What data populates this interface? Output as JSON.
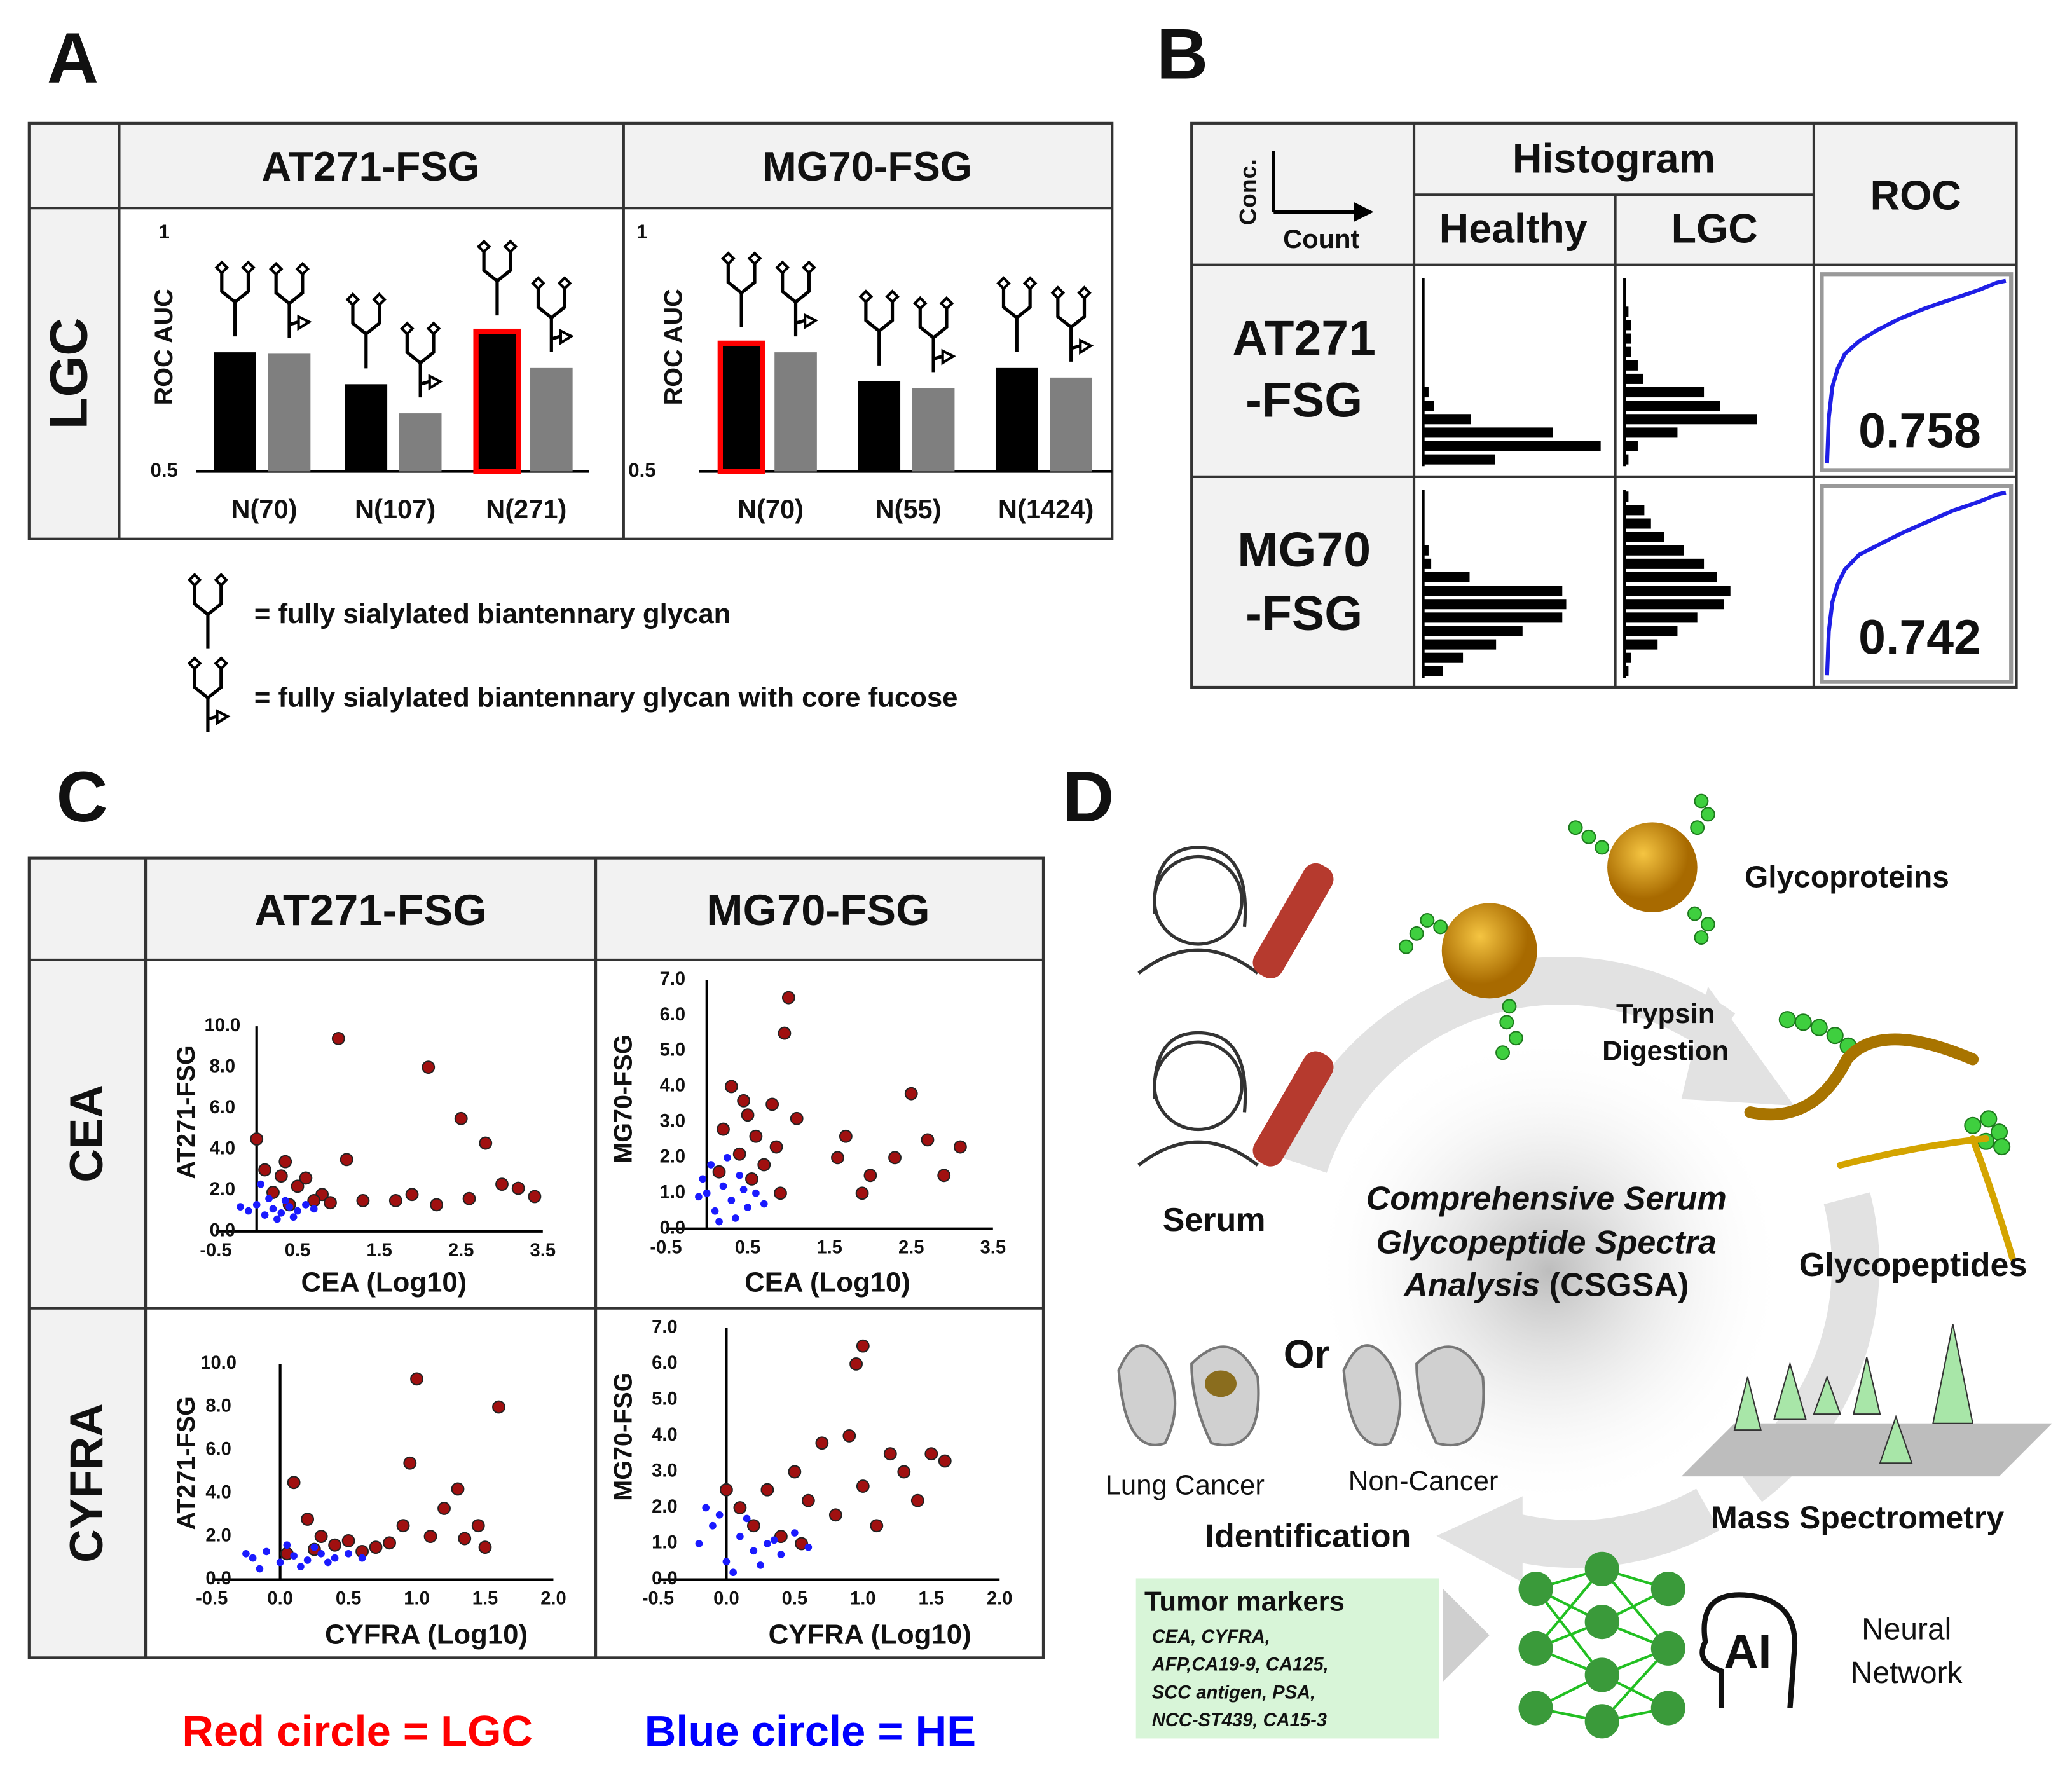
{
  "panel_labels": [
    "A",
    "B",
    "C",
    "D"
  ],
  "panel_a": {
    "columns": [
      "AT271-FSG",
      "MG70-FSG"
    ],
    "row_label": "LGC",
    "charts": [
      {
        "type": "bar",
        "ylabel": "ROC AUC",
        "ylim": [
          0.5,
          1
        ],
        "yticks": [
          0.5,
          1
        ],
        "categories": [
          "N(70)",
          "N(107)",
          "N(271)"
        ],
        "series": [
          {
            "color": "#000000",
            "values": [
              0.75,
              0.683,
              0.794
            ]
          },
          {
            "color": "#7f7f7f",
            "values": [
              0.747,
              0.622,
              0.717
            ]
          }
        ],
        "highlight": {
          "series": 0,
          "index": 2,
          "color": "#ff0000"
        }
      },
      {
        "type": "bar",
        "ylabel": "ROC AUC",
        "ylim": [
          0.5,
          1
        ],
        "yticks": [
          0.5,
          1
        ],
        "categories": [
          "N(70)",
          "N(55)",
          "N(1424)"
        ],
        "series": [
          {
            "color": "#000000",
            "values": [
              0.769,
              0.689,
              0.717
            ]
          },
          {
            "color": "#7f7f7f",
            "values": [
              0.75,
              0.675,
              0.697
            ]
          }
        ],
        "highlight": {
          "series": 0,
          "index": 0,
          "color": "#ff0000"
        }
      }
    ],
    "legend": [
      "= fully sialylated biantennary glycan",
      "= fully sialylated biantennary glycan with core fucose"
    ]
  },
  "panel_b": {
    "axis_y": "Conc.",
    "axis_x": "Count",
    "histogram_title": "Histogram",
    "groups": [
      "Healthy",
      "LGC"
    ],
    "roc_title": "ROC",
    "color": "#1f1fe6",
    "rows": [
      {
        "label_lines": [
          "AT271",
          "-FSG"
        ],
        "healthy_counts": [
          0,
          0,
          0,
          0,
          0,
          0,
          0,
          0,
          4,
          8,
          36,
          98,
          134,
          54
        ],
        "lgc_counts": [
          0,
          0,
          3,
          5,
          5,
          5,
          10,
          14,
          60,
          72,
          100,
          40,
          10,
          3
        ],
        "roc": {
          "fpr": [
            0,
            0.01,
            0.03,
            0.06,
            0.1,
            0.18,
            0.28,
            0.4,
            0.55,
            0.7,
            0.85,
            0.95,
            1
          ],
          "tpr": [
            0,
            0.25,
            0.42,
            0.52,
            0.6,
            0.67,
            0.73,
            0.79,
            0.85,
            0.9,
            0.95,
            0.99,
            1
          ]
        },
        "auc": 0.758
      },
      {
        "label_lines": [
          "MG70",
          "-FSG"
        ],
        "healthy_counts": [
          0,
          0,
          0,
          0,
          4,
          6,
          35,
          105,
          108,
          105,
          75,
          55,
          30,
          15
        ],
        "lgc_counts": [
          3,
          15,
          20,
          30,
          45,
          60,
          70,
          80,
          75,
          55,
          40,
          25,
          5,
          3
        ],
        "roc": {
          "fpr": [
            0,
            0.01,
            0.03,
            0.06,
            0.1,
            0.18,
            0.3,
            0.42,
            0.56,
            0.7,
            0.85,
            0.95,
            1
          ],
          "tpr": [
            0,
            0.24,
            0.4,
            0.5,
            0.58,
            0.66,
            0.72,
            0.78,
            0.84,
            0.9,
            0.95,
            0.99,
            1
          ]
        },
        "auc": 0.742
      }
    ]
  },
  "panel_c": {
    "columns": [
      "AT271-FSG",
      "MG70-FSG"
    ],
    "rows": [
      "CEA",
      "CYFRA"
    ],
    "legend": [
      {
        "text": "Red circle = LGC",
        "color": "#ff0000"
      },
      {
        "text": "Blue circle = HE",
        "color": "#0000ff"
      }
    ],
    "charts": [
      {
        "type": "scatter",
        "xlabel": "CEA (Log10)",
        "ylabel": "AT271-FSG",
        "xlim": [
          -0.5,
          3.5
        ],
        "ylim": [
          0,
          10
        ],
        "xticks": [
          -0.5,
          0.5,
          1.5,
          2.5,
          3.5
        ],
        "yticks": [
          {
            "value": 0,
            "label": "0.0"
          },
          {
            "value": 2,
            "label": "2.0"
          },
          {
            "value": 4,
            "label": "4.0"
          },
          {
            "value": 6,
            "label": "6.0"
          },
          {
            "value": 8,
            "label": "8.0"
          },
          {
            "value": 10,
            "label": "10.0"
          }
        ],
        "series": [
          {
            "color": "#a01010",
            "x": [
              1.0,
              2.1,
              2.5,
              2.8,
              0.0,
              0.1,
              0.3,
              0.5,
              0.8,
              1.1,
              1.7,
              1.9,
              2.2,
              2.6,
              3.0,
              3.2,
              3.4,
              0.4,
              0.7,
              0.2,
              0.9,
              0.6,
              0.35,
              1.3
            ],
            "y": [
              9.4,
              8.0,
              5.5,
              4.3,
              4.5,
              3.0,
              2.7,
              2.2,
              1.8,
              3.5,
              1.5,
              1.8,
              1.3,
              1.6,
              2.3,
              2.1,
              1.7,
              1.3,
              1.5,
              1.9,
              1.4,
              2.6,
              3.4,
              1.5
            ]
          },
          {
            "color": "#1a1aff",
            "x": [
              -0.1,
              0.0,
              0.1,
              0.2,
              0.3,
              0.4,
              0.5,
              0.6,
              0.15,
              0.05,
              0.25,
              0.45,
              -0.2,
              0.7,
              0.35
            ],
            "y": [
              1.0,
              1.3,
              0.8,
              1.1,
              0.9,
              1.2,
              1.0,
              1.3,
              1.6,
              2.3,
              0.6,
              0.7,
              1.2,
              1.1,
              1.5
            ]
          }
        ]
      },
      {
        "type": "scatter",
        "xlabel": "CEA (Log10)",
        "ylabel": "MG70-FSG",
        "xlim": [
          -0.5,
          3.5
        ],
        "ylim": [
          0,
          7
        ],
        "xticks": [
          -0.5,
          0.5,
          1.5,
          2.5,
          3.5
        ],
        "yticks": [
          {
            "value": 0,
            "label": "0.0"
          },
          {
            "value": 1,
            "label": "1.0"
          },
          {
            "value": 2,
            "label": "2.0"
          },
          {
            "value": 3,
            "label": "3.0"
          },
          {
            "value": 4,
            "label": "4.0"
          },
          {
            "value": 5,
            "label": "5.0"
          },
          {
            "value": 6,
            "label": "6.0"
          },
          {
            "value": 7,
            "label": "7.0"
          }
        ],
        "series": [
          {
            "color": "#a01010",
            "x": [
              1.0,
              0.95,
              0.8,
              1.1,
              0.3,
              0.5,
              0.6,
              0.2,
              0.4,
              0.7,
              1.6,
              1.9,
              2.5,
              2.3,
              2.7,
              3.1,
              2.9,
              0.9,
              0.15,
              0.55,
              2.0,
              1.7,
              0.45,
              0.85
            ],
            "y": [
              6.5,
              5.5,
              3.5,
              3.1,
              4.0,
              3.2,
              2.6,
              2.8,
              2.1,
              1.8,
              2.0,
              1.0,
              3.8,
              2.0,
              2.5,
              2.3,
              1.5,
              1.0,
              1.6,
              1.4,
              1.5,
              2.6,
              3.6,
              2.3
            ]
          },
          {
            "color": "#1a1aff",
            "x": [
              0.0,
              0.1,
              0.2,
              0.3,
              0.4,
              0.5,
              0.05,
              -0.1,
              0.25,
              0.35,
              0.6,
              0.15,
              -0.05,
              0.45,
              0.7
            ],
            "y": [
              1.0,
              0.5,
              1.2,
              0.8,
              1.5,
              0.6,
              1.8,
              0.9,
              2.0,
              0.3,
              1.0,
              0.2,
              1.4,
              1.1,
              0.7
            ]
          }
        ]
      },
      {
        "type": "scatter",
        "xlabel": "CYFRA (Log10)",
        "ylabel": "AT271-FSG",
        "xlim": [
          -0.5,
          2
        ],
        "ylim": [
          0,
          10
        ],
        "xticks": [
          -0.5,
          {
            "value": 0,
            "label": "0.0"
          },
          0.5,
          {
            "value": 1,
            "label": "1.0"
          },
          1.5,
          {
            "value": 2,
            "label": "2.0"
          }
        ],
        "yticks": [
          {
            "value": 0,
            "label": "0.0"
          },
          {
            "value": 2,
            "label": "2.0"
          },
          {
            "value": 4,
            "label": "4.0"
          },
          {
            "value": 6,
            "label": "6.0"
          },
          {
            "value": 8,
            "label": "8.0"
          },
          {
            "value": 10,
            "label": "10.0"
          }
        ],
        "series": [
          {
            "color": "#a01010",
            "x": [
              1.0,
              1.6,
              0.95,
              1.3,
              0.1,
              0.2,
              0.3,
              0.5,
              0.7,
              0.9,
              1.1,
              1.35,
              1.45,
              1.2,
              0.6,
              0.8,
              0.4,
              1.5,
              0.05,
              0.25
            ],
            "y": [
              9.3,
              8.0,
              5.4,
              4.2,
              4.5,
              2.8,
              2.0,
              1.8,
              1.5,
              2.5,
              2.0,
              1.9,
              2.5,
              3.3,
              1.3,
              1.7,
              1.6,
              1.5,
              1.2,
              1.4
            ]
          },
          {
            "color": "#1a1aff",
            "x": [
              -0.2,
              -0.1,
              0.0,
              0.1,
              0.2,
              0.3,
              0.4,
              0.5,
              -0.15,
              0.05,
              0.15,
              0.35,
              0.6,
              -0.25,
              0.25
            ],
            "y": [
              1.0,
              1.3,
              0.8,
              1.1,
              0.9,
              1.2,
              1.0,
              1.2,
              0.5,
              1.6,
              0.6,
              0.8,
              1.0,
              1.2,
              1.5
            ]
          }
        ]
      },
      {
        "type": "scatter",
        "xlabel": "CYFRA (Log10)",
        "ylabel": "MG70-FSG",
        "xlim": [
          -0.5,
          2
        ],
        "ylim": [
          0,
          7
        ],
        "xticks": [
          -0.5,
          {
            "value": 0,
            "label": "0.0"
          },
          0.5,
          {
            "value": 1,
            "label": "1.0"
          },
          1.5,
          {
            "value": 2,
            "label": "2.0"
          }
        ],
        "yticks": [
          {
            "value": 0,
            "label": "0.0"
          },
          {
            "value": 1,
            "label": "1.0"
          },
          {
            "value": 2,
            "label": "2.0"
          },
          {
            "value": 3,
            "label": "3.0"
          },
          {
            "value": 4,
            "label": "4.0"
          },
          {
            "value": 5,
            "label": "5.0"
          },
          {
            "value": 6,
            "label": "6.0"
          },
          {
            "value": 7,
            "label": "7.0"
          }
        ],
        "series": [
          {
            "color": "#a01010",
            "x": [
              1.0,
              0.95,
              0.9,
              0.7,
              1.2,
              1.3,
              1.5,
              1.6,
              0.5,
              0.3,
              0.1,
              0.2,
              0.6,
              0.8,
              1.1,
              1.4,
              0.4,
              0.0,
              1.0,
              0.55
            ],
            "y": [
              6.5,
              6.0,
              4.0,
              3.8,
              3.5,
              3.0,
              3.5,
              3.3,
              3.0,
              2.5,
              2.0,
              1.5,
              2.2,
              1.8,
              1.5,
              2.2,
              1.2,
              2.5,
              2.6,
              1.0
            ]
          },
          {
            "color": "#1a1aff",
            "x": [
              -0.2,
              -0.1,
              0.0,
              0.1,
              0.2,
              0.3,
              0.4,
              0.5,
              -0.15,
              0.05,
              0.15,
              0.25,
              0.35,
              0.6,
              -0.05
            ],
            "y": [
              1.0,
              1.5,
              0.5,
              1.2,
              0.8,
              1.0,
              0.7,
              1.3,
              2.0,
              0.2,
              1.7,
              0.4,
              1.1,
              0.9,
              1.8
            ]
          }
        ]
      }
    ]
  },
  "panel_d": {
    "glycoproteins": "Glycoproteins",
    "trypsin": [
      "Trypsin",
      "Digestion"
    ],
    "glycopeptides": "Glycopeptides",
    "serum": "Serum",
    "csgsa_lines": [
      "Comprehensive Serum",
      "Glycopeptide Spectra",
      "Analysis"
    ],
    "csgsa_abbrev": "(CSGSA)",
    "or": "Or",
    "lung_cancer": "Lung Cancer",
    "non_cancer": "Non-Cancer",
    "identification": "Identification",
    "mass_spec": "Mass Spectrometry",
    "tumor_title": "Tumor markers",
    "tumor_list": [
      "CEA, CYFRA,",
      "AFP,CA19-9, CA125,",
      "SCC antigen, PSA,",
      "NCC-ST439, CA15-3"
    ],
    "ai": "AI",
    "nn": [
      "Neural",
      "Network"
    ]
  }
}
